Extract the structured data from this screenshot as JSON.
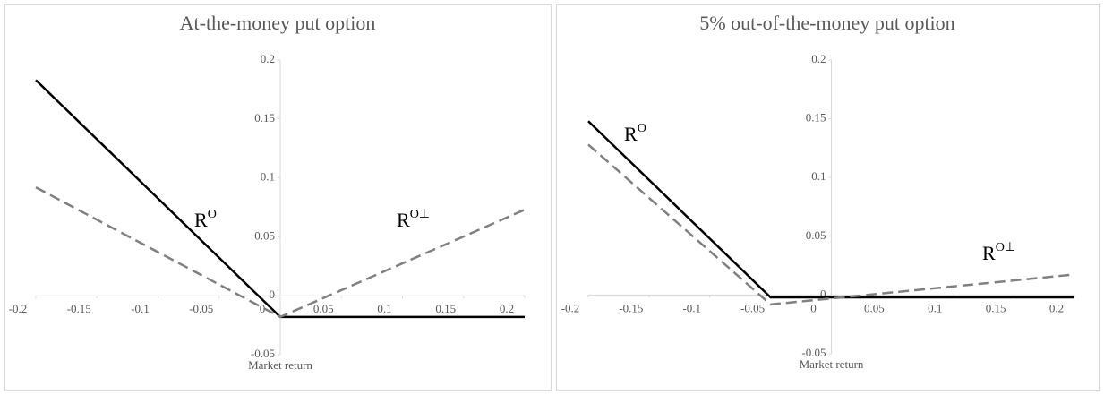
{
  "chart_data": [
    {
      "type": "line",
      "title": "At-the-money put option",
      "x_label": "Market return",
      "xlim": [
        -0.2,
        0.2
      ],
      "ylim": [
        -0.05,
        0.2
      ],
      "xticks": [
        -0.2,
        -0.15,
        -0.1,
        -0.05,
        0,
        0.05,
        0.1,
        0.15,
        0.2
      ],
      "yticks": [
        -0.05,
        0,
        0.05,
        0.1,
        0.15,
        0.2
      ],
      "series": [
        {
          "color": "#000000",
          "line_style": "solid",
          "x": [
            -0.2,
            0,
            0.2
          ],
          "values": [
            0.183,
            -0.018,
            -0.018
          ]
        },
        {
          "color": "#808080",
          "line_style": "dashed",
          "x": [
            -0.2,
            0,
            0.2
          ],
          "values": [
            0.092,
            -0.018,
            0.073
          ]
        }
      ],
      "annotations": [
        {
          "text": "R",
          "sup": "O"
        },
        {
          "text": "R",
          "sup": "O⊥"
        }
      ]
    },
    {
      "type": "line",
      "title": "5% out-of-the-money put option",
      "x_label": "Market return",
      "xlim": [
        -0.2,
        0.2
      ],
      "ylim": [
        -0.05,
        0.2
      ],
      "xticks": [
        -0.2,
        -0.15,
        -0.1,
        -0.05,
        0,
        0.05,
        0.1,
        0.15,
        0.2
      ],
      "yticks": [
        -0.05,
        0,
        0.05,
        0.1,
        0.15,
        0.2
      ],
      "series": [
        {
          "color": "#000000",
          "line_style": "solid",
          "x": [
            -0.2,
            -0.05,
            0.2
          ],
          "values": [
            0.148,
            -0.002,
            -0.002
          ]
        },
        {
          "color": "#808080",
          "line_style": "dashed",
          "x": [
            -0.2,
            -0.05,
            0.2
          ],
          "values": [
            0.128,
            -0.008,
            0.0175
          ]
        }
      ],
      "annotations": [
        {
          "text": "R",
          "sup": "O"
        },
        {
          "text": "R",
          "sup": "O⊥"
        }
      ]
    }
  ]
}
